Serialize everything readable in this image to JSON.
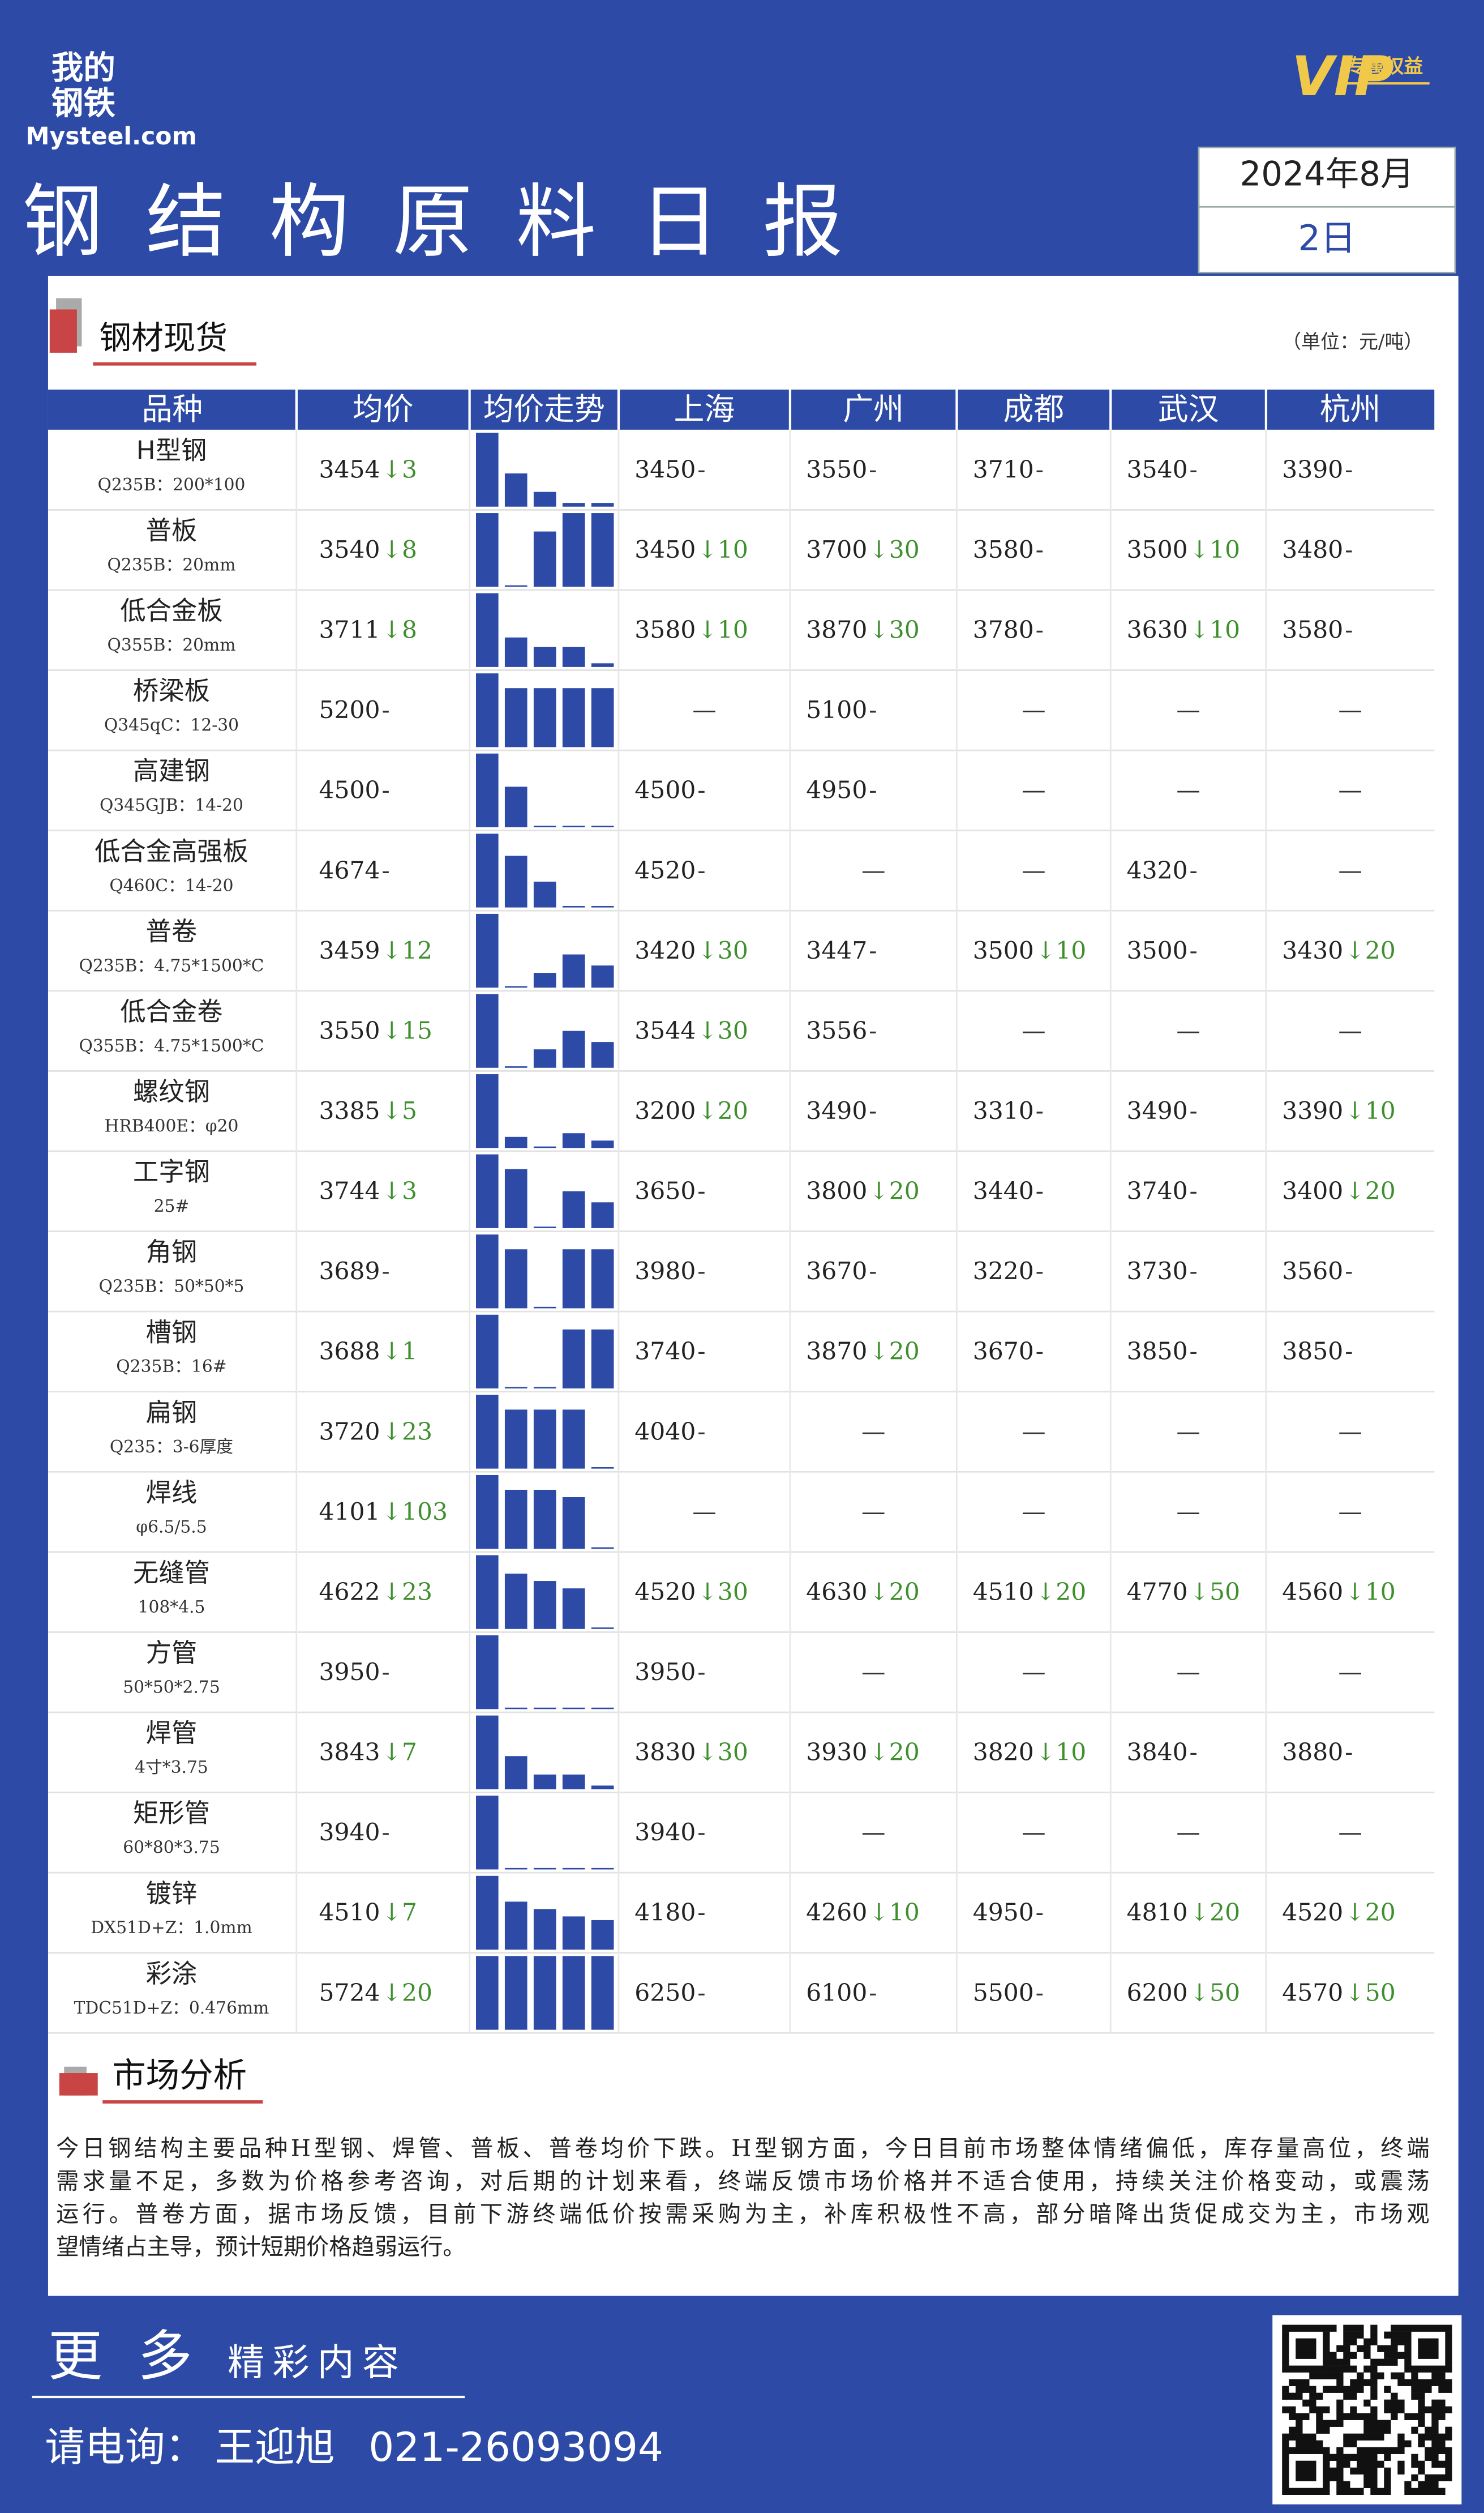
{
  "header": {
    "logo_top": "我的",
    "logo_mid": "钢铁",
    "logo_site": "Mysteel.com",
    "vip": "VIP",
    "vip_label": "专属权益",
    "title": "钢结构原料日报",
    "date_month": "2024年8月",
    "date_day": "2日"
  },
  "section_spot": {
    "title": "钢材现货",
    "unit": "（单位：元/吨）"
  },
  "table": {
    "columns": [
      "品种",
      "均价",
      "均价走势",
      "上海",
      "广州",
      "成都",
      "武汉",
      "杭州"
    ],
    "rows": [
      {
        "name": "H型钢",
        "spec": "Q235B：200*100",
        "avg": "3454",
        "avg_change": "↓3",
        "trend": [
          100,
          45,
          20,
          5,
          5
        ],
        "cities": [
          [
            "3450",
            "-"
          ],
          [
            "3550",
            "-"
          ],
          [
            "3710",
            "-"
          ],
          [
            "3540",
            "-"
          ],
          [
            "3390",
            "-"
          ]
        ]
      },
      {
        "name": "普板",
        "spec": "Q235B：20mm",
        "avg": "3540",
        "avg_change": "↓8",
        "trend": [
          100,
          2,
          75,
          100,
          100
        ],
        "cities": [
          [
            "3450",
            "↓10"
          ],
          [
            "3700",
            "↓30"
          ],
          [
            "3580",
            "-"
          ],
          [
            "3500",
            "↓10"
          ],
          [
            "3480",
            "-"
          ]
        ]
      },
      {
        "name": "低合金板",
        "spec": "Q355B：20mm",
        "avg": "3711",
        "avg_change": "↓8",
        "trend": [
          100,
          40,
          27,
          27,
          5
        ],
        "cities": [
          [
            "3580",
            "↓10"
          ],
          [
            "3870",
            "↓30"
          ],
          [
            "3780",
            "-"
          ],
          [
            "3630",
            "↓10"
          ],
          [
            "3580",
            "-"
          ]
        ]
      },
      {
        "name": "桥梁板",
        "spec": "Q345qC：12-30",
        "avg": "5200",
        "avg_change": "-",
        "trend": [
          100,
          80,
          80,
          80,
          80
        ],
        "cities": [
          [
            "—",
            ""
          ],
          [
            "5100",
            "-"
          ],
          [
            "—",
            ""
          ],
          [
            "—",
            ""
          ],
          [
            "—",
            ""
          ]
        ]
      },
      {
        "name": "高建钢",
        "spec": "Q345GJB：14-20",
        "avg": "4500",
        "avg_change": "-",
        "trend": [
          100,
          55,
          2,
          2,
          2
        ],
        "cities": [
          [
            "4500",
            "-"
          ],
          [
            "4950",
            "-"
          ],
          [
            "—",
            ""
          ],
          [
            "—",
            ""
          ],
          [
            "—",
            ""
          ]
        ]
      },
      {
        "name": "低合金高强板",
        "spec": "Q460C：14-20",
        "avg": "4674",
        "avg_change": "-",
        "trend": [
          100,
          70,
          35,
          2,
          2
        ],
        "cities": [
          [
            "4520",
            "-"
          ],
          [
            "—",
            ""
          ],
          [
            "—",
            ""
          ],
          [
            "4320",
            "-"
          ],
          [
            "—",
            ""
          ]
        ]
      },
      {
        "name": "普卷",
        "spec": "Q235B：4.75*1500*C",
        "avg": "3459",
        "avg_change": "↓12",
        "trend": [
          100,
          2,
          20,
          45,
          30
        ],
        "cities": [
          [
            "3420",
            "↓30"
          ],
          [
            "3447",
            "-"
          ],
          [
            "3500",
            "↓10"
          ],
          [
            "3500",
            "-"
          ],
          [
            "3430",
            "↓20"
          ]
        ]
      },
      {
        "name": "低合金卷",
        "spec": "Q355B：4.75*1500*C",
        "avg": "3550",
        "avg_change": "↓15",
        "trend": [
          100,
          2,
          25,
          50,
          35
        ],
        "cities": [
          [
            "3544",
            "↓30"
          ],
          [
            "3556",
            "-"
          ],
          [
            "—",
            ""
          ],
          [
            "—",
            ""
          ],
          [
            "—",
            ""
          ]
        ]
      },
      {
        "name": "螺纹钢",
        "spec": "HRB400E：φ20",
        "avg": "3385",
        "avg_change": "↓5",
        "trend": [
          100,
          15,
          2,
          20,
          10
        ],
        "cities": [
          [
            "3200",
            "↓20"
          ],
          [
            "3490",
            "-"
          ],
          [
            "3310",
            "-"
          ],
          [
            "3490",
            "-"
          ],
          [
            "3390",
            "↓10"
          ]
        ]
      },
      {
        "name": "工字钢",
        "spec": "25#",
        "avg": "3744",
        "avg_change": "↓3",
        "trend": [
          100,
          80,
          2,
          50,
          35
        ],
        "cities": [
          [
            "3650",
            "-"
          ],
          [
            "3800",
            "↓20"
          ],
          [
            "3440",
            "-"
          ],
          [
            "3740",
            "-"
          ],
          [
            "3400",
            "↓20"
          ]
        ]
      },
      {
        "name": "角钢",
        "spec": "Q235B：50*50*5",
        "avg": "3689",
        "avg_change": "-",
        "trend": [
          100,
          80,
          2,
          80,
          80
        ],
        "cities": [
          [
            "3980",
            "-"
          ],
          [
            "3670",
            "-"
          ],
          [
            "3220",
            "-"
          ],
          [
            "3730",
            "-"
          ],
          [
            "3560",
            "-"
          ]
        ]
      },
      {
        "name": "槽钢",
        "spec": "Q235B：16#",
        "avg": "3688",
        "avg_change": "↓1",
        "trend": [
          100,
          2,
          2,
          80,
          80
        ],
        "cities": [
          [
            "3740",
            "-"
          ],
          [
            "3870",
            "↓20"
          ],
          [
            "3670",
            "-"
          ],
          [
            "3850",
            "-"
          ],
          [
            "3850",
            "-"
          ]
        ]
      },
      {
        "name": "扁钢",
        "spec": "Q235：3-6厚度",
        "avg": "3720",
        "avg_change": "↓23",
        "trend": [
          100,
          80,
          80,
          80,
          2
        ],
        "cities": [
          [
            "4040",
            "-"
          ],
          [
            "—",
            ""
          ],
          [
            "—",
            ""
          ],
          [
            "—",
            ""
          ],
          [
            "—",
            ""
          ]
        ]
      },
      {
        "name": "焊线",
        "spec": "φ6.5/5.5",
        "avg": "4101",
        "avg_change": "↓103",
        "trend": [
          100,
          80,
          80,
          70,
          2
        ],
        "cities": [
          [
            "—",
            ""
          ],
          [
            "—",
            ""
          ],
          [
            "—",
            ""
          ],
          [
            "—",
            ""
          ],
          [
            "—",
            ""
          ]
        ]
      },
      {
        "name": "无缝管",
        "spec": "108*4.5",
        "avg": "4622",
        "avg_change": "↓23",
        "trend": [
          100,
          75,
          65,
          55,
          2
        ],
        "cities": [
          [
            "4520",
            "↓30"
          ],
          [
            "4630",
            "↓20"
          ],
          [
            "4510",
            "↓20"
          ],
          [
            "4770",
            "↓50"
          ],
          [
            "4560",
            "↓10"
          ]
        ]
      },
      {
        "name": "方管",
        "spec": "50*50*2.75",
        "avg": "3950",
        "avg_change": "-",
        "trend": [
          100,
          2,
          2,
          2,
          2
        ],
        "cities": [
          [
            "3950",
            "-"
          ],
          [
            "—",
            ""
          ],
          [
            "—",
            ""
          ],
          [
            "—",
            ""
          ],
          [
            "—",
            ""
          ]
        ]
      },
      {
        "name": "焊管",
        "spec": "4寸*3.75",
        "avg": "3843",
        "avg_change": "↓7",
        "trend": [
          100,
          45,
          20,
          20,
          5
        ],
        "cities": [
          [
            "3830",
            "↓30"
          ],
          [
            "3930",
            "↓20"
          ],
          [
            "3820",
            "↓10"
          ],
          [
            "3840",
            "-"
          ],
          [
            "3880",
            "-"
          ]
        ]
      },
      {
        "name": "矩形管",
        "spec": "60*80*3.75",
        "avg": "3940",
        "avg_change": "-",
        "trend": [
          100,
          2,
          2,
          2,
          2
        ],
        "cities": [
          [
            "3940",
            "-"
          ],
          [
            "—",
            ""
          ],
          [
            "—",
            ""
          ],
          [
            "—",
            ""
          ],
          [
            "—",
            ""
          ]
        ]
      },
      {
        "name": "镀锌",
        "spec": "DX51D+Z：1.0mm",
        "avg": "4510",
        "avg_change": "↓7",
        "trend": [
          100,
          65,
          55,
          45,
          40
        ],
        "cities": [
          [
            "4180",
            "-"
          ],
          [
            "4260",
            "↓10"
          ],
          [
            "4950",
            "-"
          ],
          [
            "4810",
            "↓20"
          ],
          [
            "4520",
            "↓20"
          ]
        ]
      },
      {
        "name": "彩涂",
        "spec": "TDC51D+Z：0.476mm",
        "avg": "5724",
        "avg_change": "↓20",
        "trend": [
          100,
          100,
          100,
          100,
          100
        ],
        "cities": [
          [
            "6250",
            "-"
          ],
          [
            "6100",
            "-"
          ],
          [
            "5500",
            "-"
          ],
          [
            "6200",
            "↓50"
          ],
          [
            "4570",
            "↓50"
          ]
        ]
      }
    ]
  },
  "section_analysis": {
    "title": "市场分析",
    "lines": [
      "今日钢结构主要品种H型钢、焊管、普板、普卷均价下跌。H型钢方面，今日目前市场整体情绪偏低，库存量高位，终端",
      "需求量不足，多数为价格参考咨询，对后期的计划来看，终端反馈市场价格并不适合使用，持续关注价格变动，或震荡",
      "运行。普卷方面，据市场反馈，目前下游终端低价按需采购为主，补库积极性不高，部分暗降出货促成交为主，市场观",
      "望情绪占主导，预计短期价格趋弱运行。"
    ]
  },
  "footer": {
    "more": "更多",
    "more_sub": "精彩内容",
    "contact_label": "请电询：",
    "contact_name": "王迎旭",
    "contact_phone": "021-26093094"
  }
}
